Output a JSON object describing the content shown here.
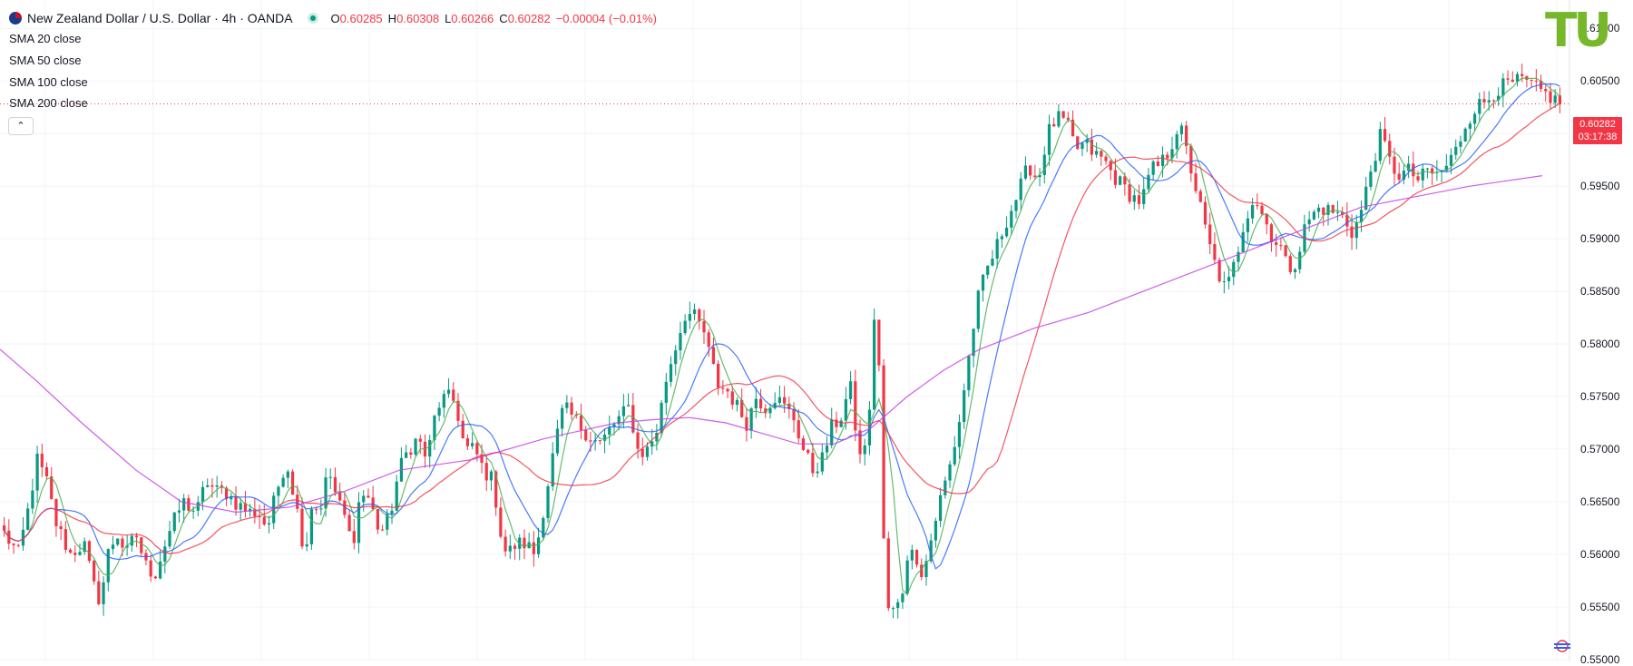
{
  "header": {
    "symbol_title": "New Zealand Dollar / U.S. Dollar · 4h · OANDA",
    "ohlc": [
      {
        "key": "O",
        "value": "0.60285"
      },
      {
        "key": "H",
        "value": "0.60308"
      },
      {
        "key": "L",
        "value": "0.60266"
      },
      {
        "key": "C",
        "value": "0.60282"
      }
    ],
    "change": "−0.00004 (−0.01%)"
  },
  "indicators": [
    "SMA 20 close",
    "SMA 50 close",
    "SMA 100 close",
    "SMA 200 close"
  ],
  "logo_text": "TU",
  "last_price": {
    "value": "0.60282",
    "countdown": "03:17:38"
  },
  "colors": {
    "up": "#089981",
    "down": "#f23645",
    "sma20": "#4caf50",
    "sma50": "#2962ff",
    "sma100": "#f23645",
    "sma200": "#c53fe7",
    "grid": "#f0f3fa",
    "logo": "#76b82a"
  },
  "chart_data": {
    "type": "candlestick",
    "timeframe": "4h",
    "y_ticks": [
      "0.61000",
      "0.60500",
      "0.60000",
      "0.59500",
      "0.59000",
      "0.58500",
      "0.58000",
      "0.57500",
      "0.57000",
      "0.56500",
      "0.56000",
      "0.55500",
      "0.55000"
    ],
    "ylim": [
      0.5499,
      0.6127
    ],
    "num_bars": 330,
    "price_path": [
      [
        0,
        0.562
      ],
      [
        6,
        0.56
      ],
      [
        10,
        0.564
      ],
      [
        14,
        0.569
      ],
      [
        18,
        0.567
      ],
      [
        22,
        0.563
      ],
      [
        28,
        0.56
      ],
      [
        34,
        0.561
      ],
      [
        38,
        0.557
      ],
      [
        41,
        0.5555
      ],
      [
        44,
        0.56
      ],
      [
        48,
        0.562
      ],
      [
        52,
        0.56
      ],
      [
        56,
        0.562
      ],
      [
        60,
        0.559
      ],
      [
        64,
        0.558
      ],
      [
        70,
        0.562
      ],
      [
        76,
        0.565
      ],
      [
        82,
        0.564
      ],
      [
        86,
        0.567
      ],
      [
        90,
        0.566
      ],
      [
        94,
        0.566
      ],
      [
        98,
        0.565
      ],
      [
        104,
        0.564
      ],
      [
        108,
        0.564
      ],
      [
        112,
        0.5625
      ],
      [
        116,
        0.566
      ],
      [
        120,
        0.569
      ],
      [
        124,
        0.565
      ],
      [
        128,
        0.56
      ],
      [
        131,
        0.565
      ],
      [
        134,
        0.564
      ],
      [
        138,
        0.568
      ],
      [
        142,
        0.565
      ],
      [
        146,
        0.563
      ],
      [
        148,
        0.5605
      ],
      [
        151,
        0.565
      ],
      [
        154,
        0.566
      ],
      [
        160,
        0.562
      ],
      [
        164,
        0.5635
      ],
      [
        168,
        0.568
      ],
      [
        172,
        0.57
      ],
      [
        176,
        0.571
      ],
      [
        180,
        0.569
      ],
      [
        184,
        0.574
      ],
      [
        188,
        0.575
      ],
      [
        192,
        0.5745
      ],
      [
        196,
        0.57
      ],
      [
        200,
        0.57
      ],
      [
        204,
        0.568
      ],
      [
        208,
        0.567
      ],
      [
        212,
        0.561
      ],
      [
        214,
        0.56
      ],
      [
        218,
        0.561
      ],
      [
        222,
        0.561
      ],
      [
        226,
        0.56
      ],
      [
        230,
        0.565
      ],
      [
        234,
        0.57
      ],
      [
        238,
        0.574
      ],
      [
        242,
        0.573
      ],
      [
        246,
        0.572
      ],
      [
        250,
        0.571
      ],
      [
        254,
        0.5705
      ],
      [
        258,
        0.572
      ],
      [
        262,
        0.573
      ],
      [
        266,
        0.574
      ],
      [
        270,
        0.5695
      ],
      [
        274,
        0.57
      ],
      [
        278,
        0.572
      ],
      [
        282,
        0.577
      ],
      [
        286,
        0.58
      ],
      [
        290,
        0.583
      ],
      [
        294,
        0.5825
      ],
      [
        298,
        0.581
      ],
      [
        300,
        0.579
      ],
      [
        304,
        0.576
      ],
      [
        308,
        0.5755
      ],
      [
        312,
        0.574
      ],
      [
        316,
        0.5725
      ],
      [
        320,
        0.575
      ],
      [
        324,
        0.574
      ],
      [
        328,
        0.575
      ],
      [
        332,
        0.574
      ],
      [
        336,
        0.573
      ],
      [
        340,
        0.57
      ],
      [
        344,
        0.568
      ],
      [
        348,
        0.569
      ],
      [
        352,
        0.572
      ],
      [
        356,
        0.573
      ],
      [
        360,
        0.576
      ],
      [
        364,
        0.569
      ],
      [
        368,
        0.572
      ],
      [
        370,
        0.583
      ],
      [
        372,
        0.58
      ],
      [
        375,
        0.555
      ],
      [
        379,
        0.5545
      ],
      [
        382,
        0.556
      ],
      [
        384,
        0.56
      ],
      [
        388,
        0.56
      ],
      [
        391,
        0.558
      ],
      [
        394,
        0.561
      ],
      [
        398,
        0.565
      ],
      [
        402,
        0.568
      ],
      [
        406,
        0.572
      ],
      [
        410,
        0.578
      ],
      [
        414,
        0.584
      ],
      [
        418,
        0.587
      ],
      [
        422,
        0.589
      ],
      [
        426,
        0.5915
      ],
      [
        430,
        0.5935
      ],
      [
        436,
        0.597
      ],
      [
        440,
        0.5955
      ],
      [
        444,
        0.6
      ],
      [
        448,
        0.6015
      ],
      [
        452,
        0.601
      ],
      [
        456,
        0.5985
      ],
      [
        460,
        0.599
      ],
      [
        464,
        0.598
      ],
      [
        468,
        0.5975
      ],
      [
        472,
        0.596
      ],
      [
        476,
        0.595
      ],
      [
        480,
        0.594
      ],
      [
        484,
        0.5935
      ],
      [
        488,
        0.5965
      ],
      [
        492,
        0.597
      ],
      [
        496,
        0.5985
      ],
      [
        500,
        0.601
      ],
      [
        504,
        0.5975
      ],
      [
        508,
        0.594
      ],
      [
        512,
        0.59
      ],
      [
        516,
        0.587
      ],
      [
        520,
        0.585
      ],
      [
        524,
        0.588
      ],
      [
        528,
        0.592
      ],
      [
        532,
        0.594
      ],
      [
        536,
        0.592
      ],
      [
        540,
        0.59
      ],
      [
        544,
        0.589
      ],
      [
        546,
        0.587
      ],
      [
        550,
        0.588
      ],
      [
        554,
        0.5915
      ],
      [
        560,
        0.593
      ],
      [
        566,
        0.5925
      ],
      [
        570,
        0.592
      ],
      [
        574,
        0.5905
      ],
      [
        578,
        0.593
      ],
      [
        582,
        0.597
      ],
      [
        586,
        0.6
      ],
      [
        590,
        0.597
      ],
      [
        594,
        0.596
      ],
      [
        598,
        0.5965
      ],
      [
        602,
        0.5955
      ],
      [
        606,
        0.5965
      ],
      [
        610,
        0.596
      ],
      [
        614,
        0.597
      ],
      [
        618,
        0.5985
      ],
      [
        622,
        0.601
      ],
      [
        626,
        0.6025
      ],
      [
        630,
        0.603
      ],
      [
        634,
        0.604
      ],
      [
        638,
        0.6045
      ],
      [
        642,
        0.6048
      ],
      [
        646,
        0.605
      ],
      [
        650,
        0.6045
      ],
      [
        654,
        0.604
      ],
      [
        658,
        0.6035
      ],
      [
        662,
        0.6028
      ]
    ],
    "series": [
      {
        "name": "SMA 20 close",
        "color": "#4caf50"
      },
      {
        "name": "SMA 50 close",
        "color": "#2962ff"
      },
      {
        "name": "SMA 100 close",
        "color": "#f23645"
      },
      {
        "name": "SMA 200 close",
        "color": "#c53fe7",
        "path": [
          [
            0,
            0.5795
          ],
          [
            40,
            0.5765
          ],
          [
            90,
            0.5725
          ],
          [
            150,
            0.568
          ],
          [
            200,
            0.565
          ],
          [
            260,
            0.564
          ],
          [
            320,
            0.5645
          ],
          [
            380,
            0.566
          ],
          [
            440,
            0.568
          ],
          [
            520,
            0.569
          ],
          [
            600,
            0.571
          ],
          [
            680,
            0.5725
          ],
          [
            720,
            0.5728
          ],
          [
            760,
            0.573
          ],
          [
            800,
            0.5725
          ],
          [
            840,
            0.5715
          ],
          [
            880,
            0.5705
          ],
          [
            920,
            0.5705
          ],
          [
            960,
            0.572
          ],
          [
            1000,
            0.575
          ],
          [
            1040,
            0.5775
          ],
          [
            1080,
            0.5795
          ],
          [
            1140,
            0.5815
          ],
          [
            1200,
            0.583
          ],
          [
            1260,
            0.585
          ],
          [
            1320,
            0.587
          ],
          [
            1380,
            0.589
          ],
          [
            1440,
            0.591
          ],
          [
            1500,
            0.593
          ],
          [
            1560,
            0.594
          ],
          [
            1620,
            0.595
          ],
          [
            1700,
            0.596
          ]
        ]
      }
    ]
  }
}
